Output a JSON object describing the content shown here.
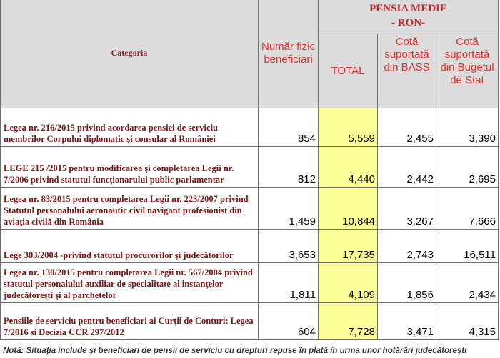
{
  "header": {
    "category": "Categoria",
    "beneficiaries": "Număr fizic beneficiari",
    "pension_title": "PENSIA MEDIE",
    "pension_unit": "- RON-",
    "total": "TOTAL",
    "bass": "Cotă suportată din BASS",
    "state": "Cotă suportată din Bugetul de Stat"
  },
  "rows": [
    {
      "category": "Legea nr. 216/2015 privind acordarea pensiei de serviciu membrilor Corpului diplomatic şi consular al României",
      "beneficiaries": "854",
      "total": "5,559",
      "bass": "2,455",
      "state": "3,390"
    },
    {
      "category": "LEGE 215 /2015  pentru modificarea şi completarea Legii nr. 7/2006 privind statutul funcţionarului public parlamentar",
      "beneficiaries": "812",
      "total": "4,440",
      "bass": "2,442",
      "state": "2,695"
    },
    {
      "category": " Legea nr. 83/2015 pentru completarea Legii nr. 223/2007 privind Statutul personalului aeronautic civil navigant profesionist din aviaţia civilă din România",
      "beneficiaries": "1,459",
      "total": "10,844",
      "bass": "3,267",
      "state": "7,666"
    },
    {
      "category": "Lege 303/2004 -privind statutul procurorilor şi judecătorilor",
      "beneficiaries": "3,653",
      "total": "17,735",
      "bass": "2,743",
      "state": "16,511"
    },
    {
      "category": "Legea nr. 130/2015 pentru completarea Legii nr. 567/2004 privind statutul personalului auxiliar de specialitate al instanţelor judecătoreşti şi al parchetelor",
      "beneficiaries": "1,811",
      "total": "4,109",
      "bass": "1,856",
      "state": "2,434"
    },
    {
      "category": "Pensiile de serviciu pentru beneficiari ai Curţii de Conturi: Legea 7/2016 si  Decizia CCR 297/2012",
      "beneficiaries": "604",
      "total": "7,728",
      "bass": "3,471",
      "state": "4,315"
    }
  ],
  "note": "Notă: Situaţia include şi beneficiari de pensii de serviciu cu drepturi repuse în plată în urma unor hotărâri judecătoreşti"
}
